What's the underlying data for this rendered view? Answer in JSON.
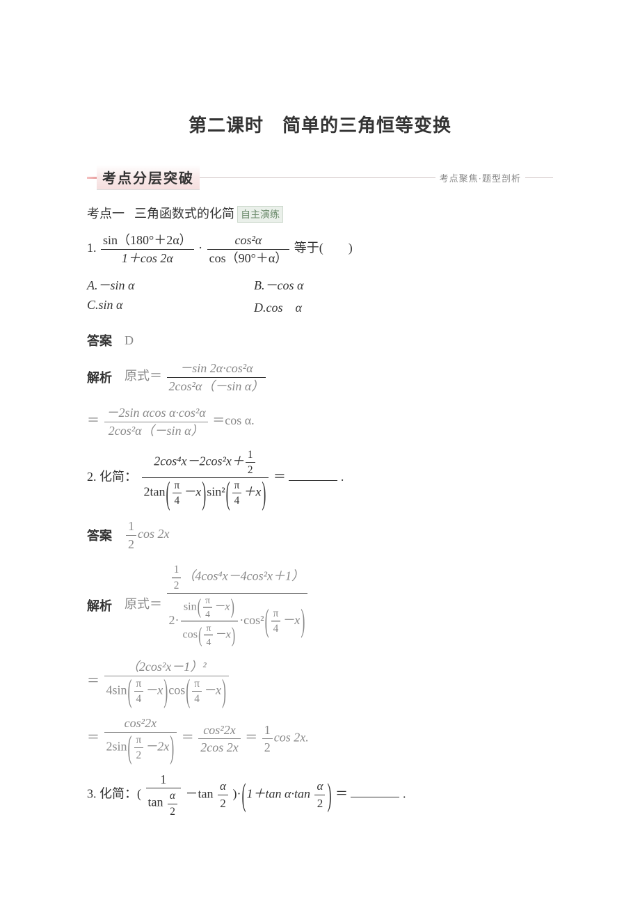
{
  "colors": {
    "text": "#333333",
    "grey": "#888888",
    "bg": "#ffffff",
    "bar_grad_from": "#f5c1c1",
    "bar_grad_to": "#e8a0a0",
    "tag_bg": "#eaf0ea",
    "tag_border": "#cdd9cd",
    "tag_text": "#6b8a6b"
  },
  "typography": {
    "title_fontsize": 26,
    "body_fontsize": 18,
    "caption_fontsize": 13,
    "font_family": "SimSun"
  },
  "title": "第二课时　简单的三角恒等变换",
  "section_bar": {
    "label": "考点分层突破",
    "caption": "考点聚焦·题型剖析"
  },
  "kaodian1": {
    "prefix": "考点一",
    "text": "三角函数式的化简",
    "tag": "自主演练"
  },
  "q1": {
    "num": "1.",
    "frac1_num": "sin（180°＋2α）",
    "frac1_den": "1＋cos 2α",
    "dot": "·",
    "frac2_num": "cos²α",
    "frac2_den": "cos（90°＋α）",
    "tail": "等于(　　)",
    "options": {
      "A": "A.－sin α",
      "B": "B.－cos α",
      "C": "C.sin α",
      "D": "D.cos　α"
    },
    "answer_label": "答案",
    "answer": "D",
    "parse_label": "解析",
    "parse_prefix": "原式＝",
    "p1_num": "－sin 2α·cos²α",
    "p1_den": "2cos²α（－sin α）",
    "p2_num": "－2sin αcos α·cos²α",
    "p2_den": "2cos²α（－sin α）",
    "p2_tail": "＝cos α."
  },
  "q2": {
    "num": "2.",
    "lead": "化简：",
    "big_num": "2cos⁴x－2cos²x＋",
    "half_num": "1",
    "half_den": "2",
    "den_lead": "2tan",
    "den_arg1_num": "π",
    "den_arg1_den": "4",
    "den_arg1_tail": "－x",
    "den_mid": "sin²",
    "den_arg2_num": "π",
    "den_arg2_den": "4",
    "den_arg2_tail": "＋x",
    "eq": "＝",
    "blank_tail": ".",
    "answer_label": "答案",
    "ans_num": "1",
    "ans_den": "2",
    "ans_tail": "cos 2x",
    "parse_label": "解析",
    "parse_prefix": "原式＝",
    "s1_top_f_num": "1",
    "s1_top_f_den": "2",
    "s1_top_rest": "（4cos⁴x－4cos²x＋1）",
    "s1_bot_lead": "2·",
    "s1_bot_sin": "sin",
    "s1_bot_cos": "cos",
    "s1_bot_arg_num": "π",
    "s1_bot_arg_den": "4",
    "s1_bot_arg_tail": "－x",
    "s1_bot_cos2": "·cos²",
    "s2_num": "（2cos²x－1）²",
    "s2_den_lead": "4sin",
    "s2_den_mid": "cos",
    "s3_a_num": "cos²2x",
    "s3_a_den_lead": "2sin",
    "s3_a_den_arg_num": "π",
    "s3_a_den_arg_den": "2",
    "s3_a_den_arg_tail": "－2x",
    "s3_b_num": "cos²2x",
    "s3_b_den": "2cos 2x",
    "s3_c_num": "1",
    "s3_c_den": "2",
    "s3_c_tail": "cos 2x."
  },
  "q3": {
    "num": "3.",
    "lead": "化简：(",
    "f1_num": "1",
    "f1_den_lead": "tan ",
    "f1_den_num": "α",
    "f1_den_den": "2",
    "minus": "－tan ",
    "f2_num": "α",
    "f2_den": "2",
    "mid": ")·",
    "paren_lead": "1＋tan α·tan ",
    "f3_num": "α",
    "f3_den": "2",
    "eq": "＝",
    "tail": "."
  }
}
